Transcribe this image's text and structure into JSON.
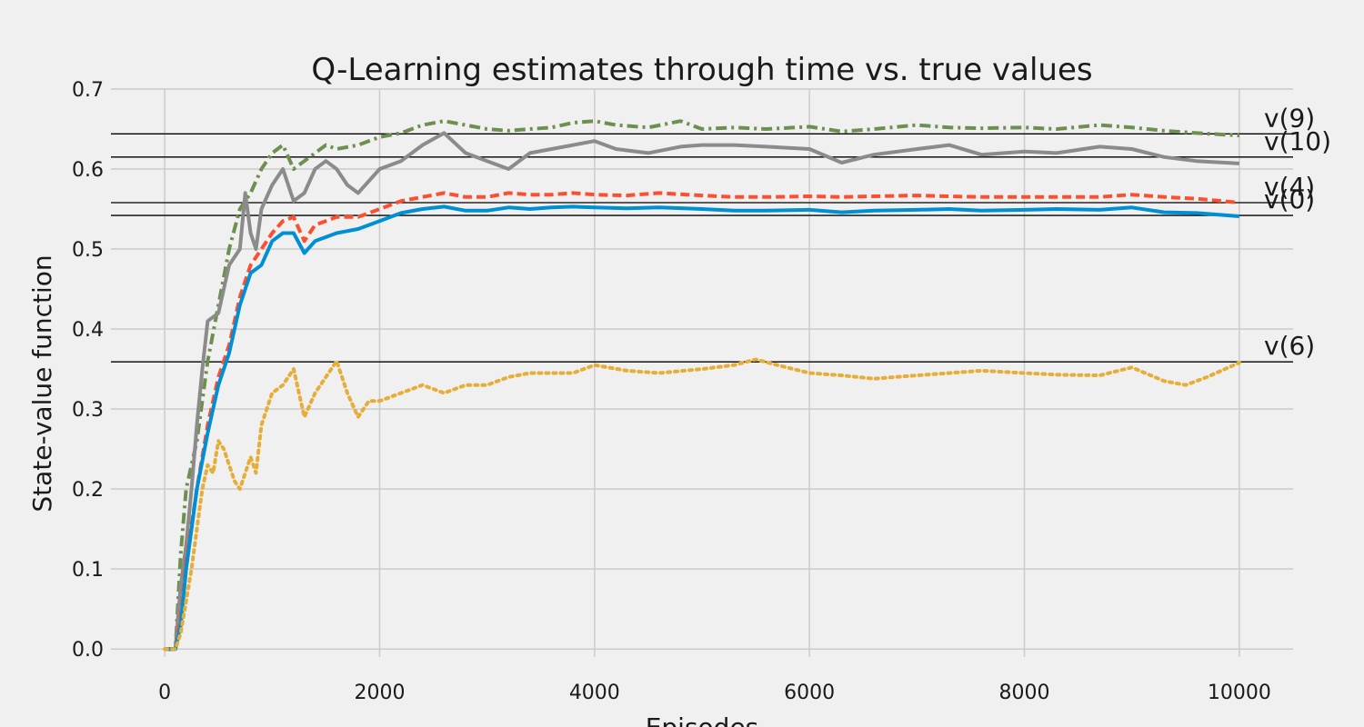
{
  "chart_data": {
    "type": "line",
    "title": "Q-Learning estimates through time vs. true values",
    "xlabel": "Episodes",
    "ylabel": "State-value function",
    "xlim": [
      -500,
      10500
    ],
    "ylim": [
      -0.01,
      0.7
    ],
    "x_ticks": [
      0,
      2000,
      4000,
      6000,
      8000,
      10000
    ],
    "y_ticks": [
      0.0,
      0.1,
      0.2,
      0.3,
      0.4,
      0.5,
      0.6,
      0.7
    ],
    "y_tick_labels": [
      "0.0",
      "0.1",
      "0.2",
      "0.3",
      "0.4",
      "0.5",
      "0.6",
      "0.7"
    ],
    "grid": true,
    "legend": "none",
    "reference_lines": [
      {
        "label": "v(9)",
        "value": 0.644
      },
      {
        "label": "v(10)",
        "value": 0.615
      },
      {
        "label": "v(4)",
        "value": 0.558
      },
      {
        "label": "v(0)",
        "value": 0.542
      },
      {
        "label": "v(6)",
        "value": 0.359
      }
    ],
    "reference_line_color": "#000000",
    "series": [
      {
        "color": "#6d904f",
        "style": "dashdot",
        "x": [
          0,
          100,
          150,
          200,
          300,
          400,
          500,
          600,
          700,
          800,
          900,
          1000,
          1100,
          1200,
          1300,
          1400,
          1500,
          1600,
          1800,
          2000,
          2200,
          2400,
          2600,
          2800,
          3000,
          3200,
          3400,
          3600,
          3800,
          4000,
          4200,
          4500,
          4800,
          5000,
          5300,
          5600,
          6000,
          6300,
          6600,
          7000,
          7300,
          7600,
          8000,
          8300,
          8700,
          9000,
          9300,
          9600,
          10000
        ],
        "y": [
          0,
          0,
          0.12,
          0.2,
          0.26,
          0.36,
          0.43,
          0.5,
          0.55,
          0.57,
          0.6,
          0.62,
          0.63,
          0.6,
          0.61,
          0.62,
          0.63,
          0.625,
          0.63,
          0.64,
          0.645,
          0.655,
          0.66,
          0.655,
          0.65,
          0.648,
          0.65,
          0.652,
          0.658,
          0.66,
          0.655,
          0.652,
          0.66,
          0.65,
          0.652,
          0.65,
          0.653,
          0.647,
          0.65,
          0.655,
          0.652,
          0.651,
          0.652,
          0.65,
          0.655,
          0.652,
          0.648,
          0.645,
          0.642
        ]
      },
      {
        "color": "#8b8b8b",
        "style": "solid",
        "x": [
          0,
          100,
          150,
          200,
          250,
          300,
          350,
          400,
          500,
          600,
          700,
          750,
          800,
          850,
          900,
          1000,
          1100,
          1200,
          1300,
          1400,
          1500,
          1600,
          1700,
          1800,
          2000,
          2200,
          2400,
          2600,
          2800,
          3000,
          3200,
          3400,
          3600,
          3800,
          4000,
          4200,
          4500,
          4800,
          5000,
          5300,
          5600,
          6000,
          6300,
          6600,
          7000,
          7300,
          7600,
          8000,
          8300,
          8700,
          9000,
          9300,
          9600,
          10000
        ],
        "y": [
          0,
          0,
          0.08,
          0.13,
          0.2,
          0.28,
          0.35,
          0.41,
          0.42,
          0.48,
          0.5,
          0.57,
          0.52,
          0.5,
          0.55,
          0.58,
          0.6,
          0.56,
          0.57,
          0.6,
          0.61,
          0.6,
          0.58,
          0.57,
          0.6,
          0.61,
          0.63,
          0.645,
          0.62,
          0.61,
          0.6,
          0.62,
          0.625,
          0.63,
          0.635,
          0.625,
          0.62,
          0.628,
          0.63,
          0.63,
          0.628,
          0.625,
          0.608,
          0.618,
          0.625,
          0.63,
          0.618,
          0.622,
          0.62,
          0.628,
          0.625,
          0.615,
          0.61,
          0.607
        ]
      },
      {
        "color": "#fc4f30",
        "style": "dashed",
        "x": [
          0,
          100,
          150,
          200,
          300,
          400,
          500,
          600,
          700,
          800,
          900,
          1000,
          1100,
          1200,
          1300,
          1400,
          1500,
          1600,
          1800,
          2000,
          2200,
          2400,
          2600,
          2800,
          3000,
          3200,
          3400,
          3600,
          3800,
          4000,
          4300,
          4600,
          5000,
          5300,
          5600,
          6000,
          6300,
          6600,
          7000,
          7300,
          7600,
          8000,
          8300,
          8700,
          9000,
          9300,
          9600,
          10000
        ],
        "y": [
          0,
          0,
          0.04,
          0.11,
          0.2,
          0.28,
          0.34,
          0.38,
          0.44,
          0.48,
          0.5,
          0.52,
          0.535,
          0.54,
          0.51,
          0.53,
          0.535,
          0.54,
          0.54,
          0.55,
          0.56,
          0.565,
          0.57,
          0.565,
          0.565,
          0.57,
          0.568,
          0.568,
          0.57,
          0.568,
          0.567,
          0.57,
          0.567,
          0.565,
          0.565,
          0.566,
          0.565,
          0.566,
          0.567,
          0.566,
          0.565,
          0.565,
          0.565,
          0.565,
          0.568,
          0.565,
          0.563,
          0.558
        ]
      },
      {
        "color": "#008fd5",
        "style": "solid",
        "x": [
          0,
          100,
          150,
          200,
          300,
          400,
          500,
          600,
          700,
          800,
          900,
          1000,
          1100,
          1200,
          1300,
          1400,
          1500,
          1600,
          1800,
          2000,
          2200,
          2400,
          2600,
          2800,
          3000,
          3200,
          3400,
          3600,
          3800,
          4000,
          4300,
          4600,
          5000,
          5300,
          5600,
          6000,
          6300,
          6600,
          7000,
          7300,
          7600,
          8000,
          8300,
          8700,
          9000,
          9300,
          9600,
          10000
        ],
        "y": [
          0,
          0,
          0.03,
          0.1,
          0.2,
          0.27,
          0.33,
          0.37,
          0.43,
          0.47,
          0.48,
          0.51,
          0.52,
          0.52,
          0.495,
          0.51,
          0.515,
          0.52,
          0.525,
          0.535,
          0.545,
          0.55,
          0.553,
          0.548,
          0.548,
          0.552,
          0.55,
          0.552,
          0.553,
          0.552,
          0.551,
          0.552,
          0.55,
          0.548,
          0.548,
          0.549,
          0.546,
          0.548,
          0.549,
          0.55,
          0.548,
          0.549,
          0.55,
          0.549,
          0.552,
          0.546,
          0.545,
          0.541
        ]
      },
      {
        "color": "#e5ae38",
        "style": "dotted",
        "x": [
          0,
          100,
          150,
          200,
          250,
          300,
          350,
          400,
          450,
          500,
          550,
          600,
          650,
          700,
          750,
          800,
          850,
          900,
          950,
          1000,
          1100,
          1200,
          1300,
          1400,
          1500,
          1600,
          1700,
          1800,
          1900,
          2000,
          2200,
          2400,
          2600,
          2800,
          3000,
          3200,
          3400,
          3600,
          3800,
          4000,
          4300,
          4600,
          5000,
          5300,
          5500,
          5700,
          6000,
          6300,
          6600,
          7000,
          7300,
          7600,
          8000,
          8300,
          8700,
          9000,
          9300,
          9500,
          9700,
          10000
        ],
        "y": [
          0,
          0,
          0.02,
          0.06,
          0.1,
          0.15,
          0.2,
          0.23,
          0.22,
          0.26,
          0.25,
          0.23,
          0.21,
          0.2,
          0.22,
          0.24,
          0.22,
          0.28,
          0.3,
          0.32,
          0.33,
          0.35,
          0.29,
          0.32,
          0.34,
          0.36,
          0.32,
          0.29,
          0.31,
          0.31,
          0.32,
          0.33,
          0.32,
          0.33,
          0.33,
          0.34,
          0.345,
          0.345,
          0.345,
          0.355,
          0.348,
          0.345,
          0.35,
          0.355,
          0.362,
          0.355,
          0.345,
          0.342,
          0.338,
          0.342,
          0.345,
          0.348,
          0.345,
          0.343,
          0.342,
          0.352,
          0.335,
          0.33,
          0.34,
          0.358
        ]
      }
    ]
  }
}
